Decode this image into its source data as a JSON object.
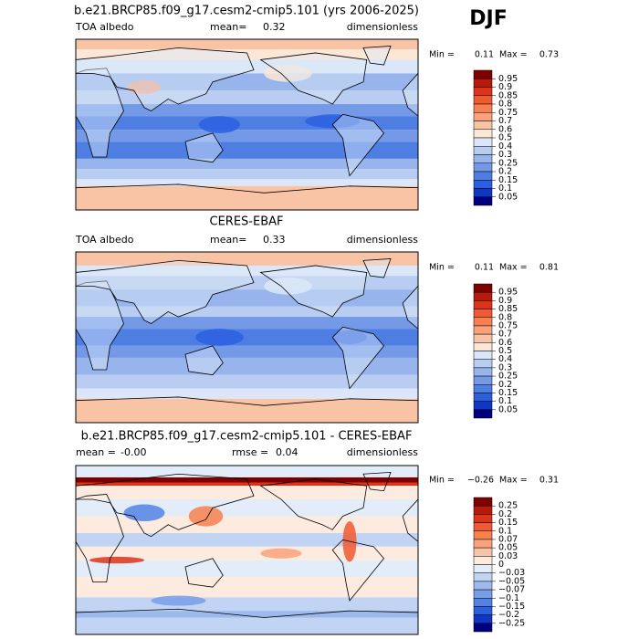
{
  "season": "DJF",
  "panels": [
    {
      "title": "b.e21.BRCP85.f09_g17.cesm2-cmip5.101 (yrs 2006-2025)",
      "variable": "TOA albedo",
      "mean_label": "mean=",
      "mean": 0.32,
      "units": "dimensionless",
      "min_label": "Min =",
      "min": 0.11,
      "max_label": "Max =",
      "max": 0.73,
      "colorbar_levels": [
        0.95,
        0.9,
        0.85,
        0.8,
        0.75,
        0.7,
        0.6,
        0.5,
        0.4,
        0.3,
        0.25,
        0.2,
        0.15,
        0.1,
        0.05
      ],
      "colorbar_colors": [
        "#7f0000",
        "#b81a0a",
        "#dc3418",
        "#ef5a30",
        "#f6804f",
        "#f9a27b",
        "#f9c3a6",
        "#fce6d6",
        "#dbe7f8",
        "#b8cdf1",
        "#97b5ec",
        "#7399e7",
        "#4f7ee3",
        "#2b5fe0",
        "#0f36c4",
        "#00007f"
      ]
    },
    {
      "title": "CERES-EBAF",
      "variable": "TOA albedo",
      "mean_label": "mean=",
      "mean": 0.33,
      "units": "dimensionless",
      "min_label": "Min =",
      "min": 0.11,
      "max_label": "Max =",
      "max": 0.81,
      "colorbar_levels": [
        0.95,
        0.9,
        0.85,
        0.8,
        0.75,
        0.7,
        0.6,
        0.5,
        0.4,
        0.3,
        0.25,
        0.2,
        0.15,
        0.1,
        0.05
      ],
      "colorbar_colors": [
        "#7f0000",
        "#b81a0a",
        "#dc3418",
        "#ef5a30",
        "#f6804f",
        "#f9a27b",
        "#f9c3a6",
        "#fce6d6",
        "#dbe7f8",
        "#b8cdf1",
        "#97b5ec",
        "#7399e7",
        "#4f7ee3",
        "#2b5fe0",
        "#0f36c4",
        "#00007f"
      ]
    },
    {
      "title": "b.e21.BRCP85.f09_g17.cesm2-cmip5.101 - CERES-EBAF",
      "mean_label": "mean =",
      "mean": {
        "value": 0,
        "label": "-0.00"
      },
      "rmse_label": "rmse =",
      "rmse": 0.04,
      "units": "dimensionless",
      "min_label": "Min =",
      "min": {
        "value": -0.26,
        "label": "−0.26"
      },
      "max_label": "Max =",
      "max": 0.31,
      "colorbar_levels": [
        0.25,
        0.2,
        0.15,
        0.1,
        0.07,
        0.05,
        0.03,
        0,
        {
          "value": -0.03,
          "label": "−0.03"
        },
        {
          "value": -0.05,
          "label": "−0.05"
        },
        {
          "value": -0.07,
          "label": "−0.07"
        },
        {
          "value": -0.1,
          "label": "−0.1"
        },
        {
          "value": -0.15,
          "label": "−0.15"
        },
        {
          "value": -0.2,
          "label": "−0.2"
        },
        {
          "value": -0.25,
          "label": "−0.25"
        }
      ],
      "colorbar_colors": [
        "#7f0000",
        "#b81a0a",
        "#dc3418",
        "#ef5a30",
        "#f6804f",
        "#f9a27b",
        "#f9c3a6",
        "#fdebe0",
        "#e3edfa",
        "#c1d4f3",
        "#9dbaed",
        "#789de8",
        "#5282e4",
        "#2b5fe0",
        "#0f36c4",
        "#00007f"
      ]
    }
  ]
}
